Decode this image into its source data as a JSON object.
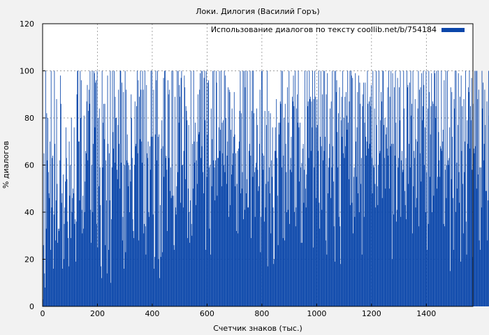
{
  "chart_data": {
    "type": "bar",
    "title": "Локи. Дилогия (Василий Горъ)",
    "xlabel": "Счетчик знаков (тыс.)",
    "ylabel": "% диалогов",
    "xlim": [
      0,
      1570
    ],
    "ylim": [
      0,
      120
    ],
    "xticks": [
      0,
      200,
      400,
      600,
      800,
      1000,
      1200,
      1400
    ],
    "yticks": [
      0,
      20,
      40,
      60,
      80,
      100,
      120
    ],
    "grid": true,
    "legend_position": "top-right",
    "series": [
      {
        "name": "Использование диалогов по тексту coollib.net/b/754184",
        "color": "#0a46aa",
        "bin_width": 2,
        "values": [
          3,
          26,
          65,
          14,
          8,
          100,
          33,
          82,
          62,
          80,
          57,
          48,
          46,
          70,
          24,
          100,
          42,
          63,
          64,
          16,
          39,
          100,
          69,
          28,
          45,
          88,
          52,
          27,
          33,
          32,
          33,
          62,
          98,
          86,
          44,
          48,
          16,
          56,
          20,
          35,
          42,
          53,
          76,
          63,
          54,
          36,
          29,
          17,
          70,
          47,
          60,
          29,
          80,
          40,
          46,
          50,
          48,
          76,
          35,
          37,
          19,
          36,
          90,
          100,
          100,
          70,
          70,
          45,
          100,
          80,
          96,
          41,
          31,
          47,
          33,
          81,
          40,
          53,
          66,
          65,
          87,
          94,
          62,
          83,
          92,
          86,
          100,
          41,
          27,
          60,
          100,
          40,
          69,
          100,
          99,
          76,
          95,
          96,
          35,
          100,
          25,
          80,
          51,
          84,
          59,
          43,
          17,
          12,
          100,
          59,
          78,
          86,
          71,
          86,
          26,
          62,
          45,
          14,
          98,
          69,
          24,
          65,
          45,
          100,
          10,
          37,
          59,
          100,
          74,
          67,
          100,
          61,
          89,
          80,
          80,
          58,
          54,
          77,
          92,
          69,
          50,
          100,
          100,
          61,
          95,
          28,
          38,
          91,
          16,
          60,
          100,
          23,
          92,
          62,
          73,
          61,
          51,
          60,
          40,
          58,
          53,
          90,
          80,
          63,
          37,
          32,
          29,
          60,
          87,
          68,
          69,
          85,
          100,
          65,
          96,
          28,
          89,
          71,
          100,
          92,
          70,
          61,
          100,
          92,
          31,
          35,
          100,
          34,
          22,
          94,
          65,
          63,
          70,
          40,
          38,
          68,
          58,
          100,
          72,
          100,
          72,
          39,
          92,
          16,
          21,
          73,
          100,
          96,
          62,
          100,
          72,
          20,
          73,
          12,
          43,
          21,
          67,
          79,
          23,
          68,
          97,
          55,
          100,
          100,
          63,
          64,
          58,
          32,
          96,
          90,
          63,
          92,
          49,
          59,
          46,
          100,
          47,
          100,
          47,
          26,
          24,
          89,
          42,
          39,
          51,
          100,
          57,
          100,
          78,
          94,
          89,
          44,
          97,
          100,
          60,
          60,
          42,
          66,
          98,
          93,
          54,
          85,
          83,
          79,
          29,
          50,
          77,
          40,
          27,
          45,
          100,
          35,
          30,
          69,
          50,
          100,
          70,
          61,
          78,
          43,
          62,
          70,
          52,
          90,
          73,
          74,
          92,
          99,
          63,
          100,
          68,
          100,
          57,
          48,
          97,
          100,
          79,
          24,
          100,
          55,
          73,
          95,
          96,
          59,
          33,
          60,
          22,
          84,
          51,
          71,
          100,
          62,
          100,
          59,
          45,
          62,
          100,
          95,
          47,
          63,
          63,
          76,
          100,
          66,
          75,
          100,
          51,
          78,
          65,
          79,
          60,
          100,
          57,
          98,
          80,
          52,
          64,
          70,
          93,
          38,
          92,
          91,
          43,
          75,
          56,
          84,
          60,
          65,
          72,
          91,
          73,
          51,
          65,
          32,
          52,
          66,
          31,
          67,
          70,
          83,
          100,
          48,
          82,
          50,
          57,
          100,
          37,
          100,
          41,
          93,
          100,
          48,
          54,
          100,
          42,
          42,
          66,
          69,
          100,
          64,
          29,
          83,
          100,
          55,
          100,
          82,
          57,
          38,
          59,
          61,
          84,
          77,
          58,
          49,
          51,
          69,
          92,
          23,
          38,
          100,
          100,
          65,
          58,
          64,
          36,
          83,
          42,
          52,
          77,
          100,
          17,
          53,
          83,
          59,
          48,
          82,
          31,
          62,
          55,
          76,
          42,
          18,
          20,
          66,
          76,
          66,
          88,
          63,
          47,
          26,
          78,
          73,
          78,
          87,
          86,
          100,
          59,
          100,
          29,
          64,
          80,
          28,
          86,
          69,
          57,
          40,
          93,
          41,
          78,
          100,
          35,
          58,
          63,
          72,
          57,
          89,
          87,
          98,
          85,
          40,
          100,
          34,
          42,
          84,
          90,
          78,
          100,
          76,
          53,
          78,
          59,
          27,
          61,
          27,
          67,
          69,
          44,
          58,
          100,
          50,
          42,
          56,
          100,
          85,
          87,
          63,
          100,
          88,
          89,
          66,
          87,
          76,
          100,
          25,
          88,
          59,
          100,
          89,
          46,
          76,
          88,
          77,
          66,
          100,
          44,
          33,
          72,
          100,
          68,
          41,
          90,
          62,
          100,
          66,
          100,
          72,
          28,
          90,
          22,
          99,
          48,
          59,
          63,
          69,
          84,
          46,
          87,
          59,
          100,
          68,
          53,
          34,
          100,
          19,
          100,
          91,
          96,
          74,
          59,
          82,
          38,
          93,
          34,
          18,
          79,
          89,
          72,
          100,
          65,
          80,
          63,
          89,
          68,
          91,
          81,
          75,
          100,
          78,
          54,
          87,
          100,
          43,
          100,
          98,
          44,
          97,
          31,
          55,
          59,
          38,
          99,
          70,
          55,
          76,
          91,
          48,
          98,
          40,
          95,
          86,
          52,
          63,
          22,
          85,
          90,
          95,
          38,
          78,
          95,
          72,
          64,
          70,
          100,
          86,
          67,
          87,
          69,
          89,
          85,
          94,
          63,
          48,
          100,
          60,
          59,
          84,
          52,
          42,
          100,
          77,
          51,
          43,
          60,
          100,
          65,
          66,
          79,
          91,
          87,
          46,
          100,
          100,
          77,
          63,
          80,
          50,
          73,
          76,
          67,
          93,
          64,
          100,
          50,
          89,
          68,
          100,
          69,
          20,
          99,
          69,
          39,
          93,
          64,
          100,
          78,
          36,
          41,
          97,
          59,
          63,
          93,
          79,
          100,
          38,
          62,
          66,
          57,
          58,
          100,
          84,
          49,
          43,
          63,
          37,
          100,
          93,
          94,
          52,
          69,
          95,
          59,
          100,
          81,
          86,
          31,
          100,
          51,
          66,
          63,
          88,
          42,
          71,
          46,
          70,
          84,
          100,
          34,
          92,
          65,
          93,
          53,
          99,
          79,
          85,
          100,
          94,
          60,
          76,
          40,
          100,
          57,
          24,
          84,
          35,
          100,
          91,
          55,
          73,
          85,
          99,
          40,
          87,
          86,
          47,
          100,
          99,
          80,
          85,
          100,
          50,
          55,
          100,
          74,
          62,
          55,
          68,
          67,
          100,
          66,
          70,
          75,
          35,
          96,
          34,
          58,
          100,
          46,
          60,
          100,
          62,
          60,
          63,
          76,
          15,
          93,
          54,
          91,
          72,
          46,
          24,
          88,
          84,
          100,
          40,
          100,
          61,
          50,
          77,
          99,
          57,
          44,
          89,
          19,
          98,
          66,
          85,
          52,
          31,
          88,
          57,
          70,
          100,
          36,
          22,
          79,
          69,
          93,
          91,
          100,
          67,
          85,
          79,
          97,
          58,
          21,
          86,
          67,
          65,
          100,
          68,
          100,
          50,
          100,
          88,
          56,
          92,
          28,
          59,
          24,
          59,
          42,
          100,
          84,
          95,
          62,
          69,
          92,
          77,
          49,
          49,
          87,
          28,
          45,
          100,
          81,
          92,
          53,
          94,
          69,
          87,
          49,
          59,
          32,
          69,
          62,
          100,
          82,
          26,
          38,
          100,
          56,
          66,
          35,
          58,
          23,
          56,
          96,
          100,
          48,
          53,
          84,
          43,
          97,
          61,
          53,
          88,
          71,
          100,
          79,
          100,
          58,
          37,
          87,
          29,
          60,
          81,
          66,
          100,
          57,
          80,
          33,
          71,
          94,
          53,
          100,
          49,
          58,
          72,
          40,
          39,
          93,
          54
        ]
      }
    ]
  }
}
